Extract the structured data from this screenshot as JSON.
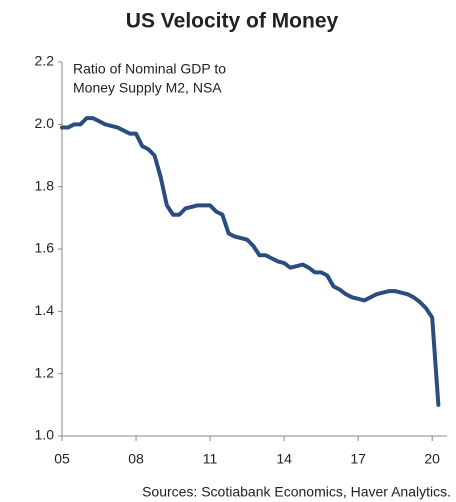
{
  "chart_data": {
    "type": "line",
    "title": "US Velocity of Money",
    "annotation": [
      "Ratio of Nominal GDP to",
      "Money Supply M2, NSA"
    ],
    "source": "Sources: Scotiabank Economics, Haver Analytics.",
    "xlim": [
      2005,
      2020.6
    ],
    "ylim": [
      1.0,
      2.2
    ],
    "xticks": [
      {
        "value": 2005,
        "label": "05"
      },
      {
        "value": 2008,
        "label": "08"
      },
      {
        "value": 2011,
        "label": "11"
      },
      {
        "value": 2014,
        "label": "14"
      },
      {
        "value": 2017,
        "label": "17"
      },
      {
        "value": 2020,
        "label": "20"
      }
    ],
    "yticks": [
      {
        "value": 1.0,
        "label": "1.0"
      },
      1.2,
      1.4,
      1.6,
      1.8,
      {
        "value": 2.0,
        "label": "2.0"
      },
      2.2
    ],
    "grid": false,
    "series": [
      {
        "name": "US Velocity of Money",
        "color": "#2a4d7f",
        "x": [
          2005.0,
          2005.25,
          2005.5,
          2005.75,
          2006.0,
          2006.25,
          2006.5,
          2006.75,
          2007.0,
          2007.25,
          2007.5,
          2007.75,
          2008.0,
          2008.25,
          2008.5,
          2008.75,
          2009.0,
          2009.25,
          2009.5,
          2009.75,
          2010.0,
          2010.25,
          2010.5,
          2010.75,
          2011.0,
          2011.25,
          2011.5,
          2011.75,
          2012.0,
          2012.25,
          2012.5,
          2012.75,
          2013.0,
          2013.25,
          2013.5,
          2013.75,
          2014.0,
          2014.25,
          2014.5,
          2014.75,
          2015.0,
          2015.25,
          2015.5,
          2015.75,
          2016.0,
          2016.25,
          2016.5,
          2016.75,
          2017.0,
          2017.25,
          2017.5,
          2017.75,
          2018.0,
          2018.25,
          2018.5,
          2018.75,
          2019.0,
          2019.25,
          2019.5,
          2019.75,
          2020.0,
          2020.25
        ],
        "values": [
          1.99,
          1.99,
          2.0,
          2.0,
          2.02,
          2.02,
          2.01,
          2.0,
          1.995,
          1.99,
          1.98,
          1.97,
          1.97,
          1.93,
          1.92,
          1.9,
          1.83,
          1.74,
          1.71,
          1.71,
          1.73,
          1.735,
          1.74,
          1.74,
          1.74,
          1.72,
          1.71,
          1.65,
          1.64,
          1.635,
          1.63,
          1.61,
          1.58,
          1.58,
          1.57,
          1.56,
          1.555,
          1.54,
          1.545,
          1.55,
          1.54,
          1.525,
          1.525,
          1.515,
          1.48,
          1.47,
          1.455,
          1.445,
          1.44,
          1.435,
          1.445,
          1.455,
          1.46,
          1.465,
          1.465,
          1.46,
          1.455,
          1.445,
          1.43,
          1.41,
          1.38,
          1.1
        ]
      }
    ]
  }
}
